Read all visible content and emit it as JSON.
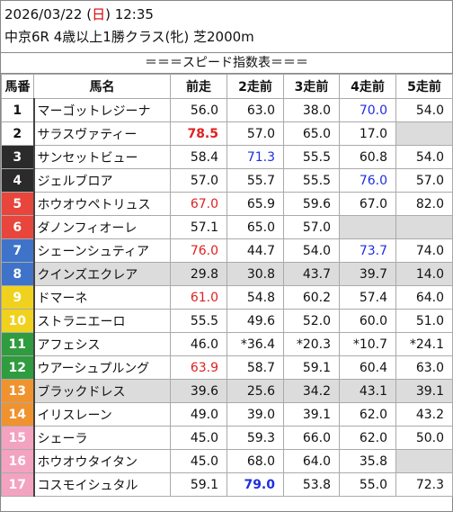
{
  "header": {
    "date_prefix": "2026/03/22 (",
    "weekday": "日",
    "date_suffix": ") 12:35",
    "race": "中京6R 4歳以上1勝クラス(牝) 芝2000m"
  },
  "table_title": "＝＝＝スピード指数表＝＝＝",
  "columns": [
    "馬番",
    "馬名",
    "前走",
    "2走前",
    "3走前",
    "4走前",
    "5走前"
  ],
  "colors": {
    "red": "#e02020",
    "blue": "#1d2ee0",
    "shaded": "#dcdcdc"
  },
  "rows": [
    {
      "num": "1",
      "name": "マーゴットレジーナ",
      "bg": "#ffffff",
      "fg": "#111111",
      "shaded": false,
      "vals": [
        {
          "t": "56.0"
        },
        {
          "t": "63.0"
        },
        {
          "t": "38.0"
        },
        {
          "t": "70.0",
          "c": "blue"
        },
        {
          "t": "54.0"
        }
      ]
    },
    {
      "num": "2",
      "name": "サラスヴァティー",
      "bg": "#ffffff",
      "fg": "#111111",
      "shaded": false,
      "vals": [
        {
          "t": "78.5",
          "c": "red",
          "b": true
        },
        {
          "t": "57.0"
        },
        {
          "t": "65.0"
        },
        {
          "t": "17.0"
        },
        {
          "t": "",
          "e": true
        }
      ]
    },
    {
      "num": "3",
      "name": "サンセットビュー",
      "bg": "#2b2b2b",
      "fg": "#ffffff",
      "shaded": false,
      "vals": [
        {
          "t": "58.4"
        },
        {
          "t": "71.3",
          "c": "blue"
        },
        {
          "t": "55.5"
        },
        {
          "t": "60.8"
        },
        {
          "t": "54.0"
        }
      ]
    },
    {
      "num": "4",
      "name": "ジェルブロア",
      "bg": "#2b2b2b",
      "fg": "#ffffff",
      "shaded": false,
      "vals": [
        {
          "t": "57.0"
        },
        {
          "t": "55.7"
        },
        {
          "t": "55.5"
        },
        {
          "t": "76.0",
          "c": "blue"
        },
        {
          "t": "57.0"
        }
      ]
    },
    {
      "num": "5",
      "name": "ホウオウペトリュス",
      "bg": "#e8453c",
      "fg": "#ffffff",
      "shaded": false,
      "vals": [
        {
          "t": "67.0",
          "c": "red"
        },
        {
          "t": "65.9"
        },
        {
          "t": "59.6"
        },
        {
          "t": "67.0"
        },
        {
          "t": "82.0"
        }
      ]
    },
    {
      "num": "6",
      "name": "ダノンフィオーレ",
      "bg": "#e8453c",
      "fg": "#ffffff",
      "shaded": false,
      "vals": [
        {
          "t": "57.1"
        },
        {
          "t": "65.0"
        },
        {
          "t": "57.0"
        },
        {
          "t": "",
          "e": true
        },
        {
          "t": "",
          "e": true
        }
      ]
    },
    {
      "num": "7",
      "name": "シェーンシュティア",
      "bg": "#3f73c9",
      "fg": "#ffffff",
      "shaded": false,
      "vals": [
        {
          "t": "76.0",
          "c": "red"
        },
        {
          "t": "44.7"
        },
        {
          "t": "54.0"
        },
        {
          "t": "73.7",
          "c": "blue"
        },
        {
          "t": "74.0"
        }
      ]
    },
    {
      "num": "8",
      "name": "クインズエクレア",
      "bg": "#3f73c9",
      "fg": "#ffffff",
      "shaded": true,
      "vals": [
        {
          "t": "29.8"
        },
        {
          "t": "30.8"
        },
        {
          "t": "43.7"
        },
        {
          "t": "39.7"
        },
        {
          "t": "14.0"
        }
      ]
    },
    {
      "num": "9",
      "name": "ドマーネ",
      "bg": "#f0d21e",
      "fg": "#ffffff",
      "shaded": false,
      "vals": [
        {
          "t": "61.0",
          "c": "red"
        },
        {
          "t": "54.8"
        },
        {
          "t": "60.2"
        },
        {
          "t": "57.4"
        },
        {
          "t": "64.0"
        }
      ]
    },
    {
      "num": "10",
      "name": "ストラニエーロ",
      "bg": "#f0d21e",
      "fg": "#ffffff",
      "shaded": false,
      "vals": [
        {
          "t": "55.5"
        },
        {
          "t": "49.6"
        },
        {
          "t": "52.0"
        },
        {
          "t": "60.0"
        },
        {
          "t": "51.0"
        }
      ]
    },
    {
      "num": "11",
      "name": "アフェシス",
      "bg": "#2f9c3f",
      "fg": "#ffffff",
      "shaded": false,
      "vals": [
        {
          "t": "46.0"
        },
        {
          "t": "*36.4"
        },
        {
          "t": "*20.3"
        },
        {
          "t": "*10.7"
        },
        {
          "t": "*24.1"
        }
      ]
    },
    {
      "num": "12",
      "name": "ウアーシュプルング",
      "bg": "#2f9c3f",
      "fg": "#ffffff",
      "shaded": false,
      "vals": [
        {
          "t": "63.9",
          "c": "red"
        },
        {
          "t": "58.7"
        },
        {
          "t": "59.1"
        },
        {
          "t": "60.4"
        },
        {
          "t": "63.0"
        }
      ]
    },
    {
      "num": "13",
      "name": "ブラックドレス",
      "bg": "#f0922e",
      "fg": "#ffffff",
      "shaded": true,
      "vals": [
        {
          "t": "39.6"
        },
        {
          "t": "25.6"
        },
        {
          "t": "34.2"
        },
        {
          "t": "43.1"
        },
        {
          "t": "39.1"
        }
      ]
    },
    {
      "num": "14",
      "name": "イリスレーン",
      "bg": "#f0922e",
      "fg": "#ffffff",
      "shaded": false,
      "vals": [
        {
          "t": "49.0"
        },
        {
          "t": "39.0"
        },
        {
          "t": "39.1"
        },
        {
          "t": "62.0"
        },
        {
          "t": "43.2"
        }
      ]
    },
    {
      "num": "15",
      "name": "シェーラ",
      "bg": "#f3a3bf",
      "fg": "#ffffff",
      "shaded": false,
      "vals": [
        {
          "t": "45.0"
        },
        {
          "t": "59.3"
        },
        {
          "t": "66.0"
        },
        {
          "t": "62.0"
        },
        {
          "t": "50.0"
        }
      ]
    },
    {
      "num": "16",
      "name": "ホウオウタイタン",
      "bg": "#f3a3bf",
      "fg": "#ffffff",
      "shaded": false,
      "vals": [
        {
          "t": "45.0"
        },
        {
          "t": "68.0"
        },
        {
          "t": "64.0"
        },
        {
          "t": "35.8"
        },
        {
          "t": "",
          "e": true
        }
      ]
    },
    {
      "num": "17",
      "name": "コスモイシュタル",
      "bg": "#f3a3bf",
      "fg": "#ffffff",
      "shaded": false,
      "vals": [
        {
          "t": "59.1"
        },
        {
          "t": "79.0",
          "c": "blue",
          "b": true
        },
        {
          "t": "53.8"
        },
        {
          "t": "55.0"
        },
        {
          "t": "72.3"
        }
      ]
    }
  ]
}
